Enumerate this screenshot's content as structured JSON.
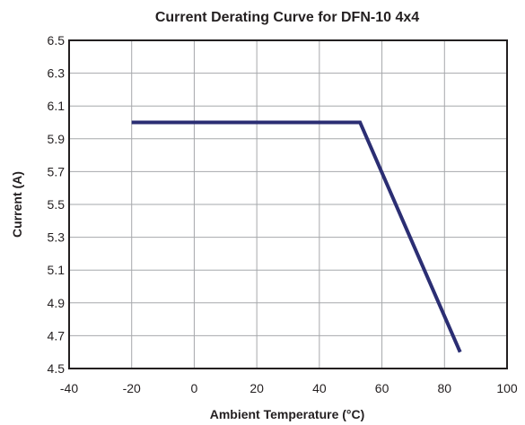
{
  "chart_data": {
    "type": "line",
    "title": "Current Derating Curve for DFN-10 4x4",
    "xlabel": "Ambient Temperature (°C)",
    "ylabel": "Current (A)",
    "xlim": [
      -40,
      100
    ],
    "ylim": [
      4.5,
      6.5
    ],
    "x_ticks": [
      -40,
      -20,
      0,
      20,
      40,
      60,
      80,
      100
    ],
    "y_ticks": [
      4.5,
      4.7,
      4.9,
      5.1,
      5.3,
      5.5,
      5.7,
      5.9,
      6.1,
      6.3,
      6.5
    ],
    "x_tick_labels": [
      "-40",
      "-20",
      "0",
      "20",
      "40",
      "60",
      "80",
      "100"
    ],
    "y_tick_labels": [
      "4.5",
      "4.7",
      "4.9",
      "5.1",
      "5.3",
      "5.5",
      "5.7",
      "5.9",
      "6.1",
      "6.3",
      "6.5"
    ],
    "grid": true,
    "series": [
      {
        "color": "#2b2e73",
        "x": [
          -20,
          53,
          85
        ],
        "y": [
          6.0,
          6.0,
          4.6
        ]
      }
    ]
  }
}
